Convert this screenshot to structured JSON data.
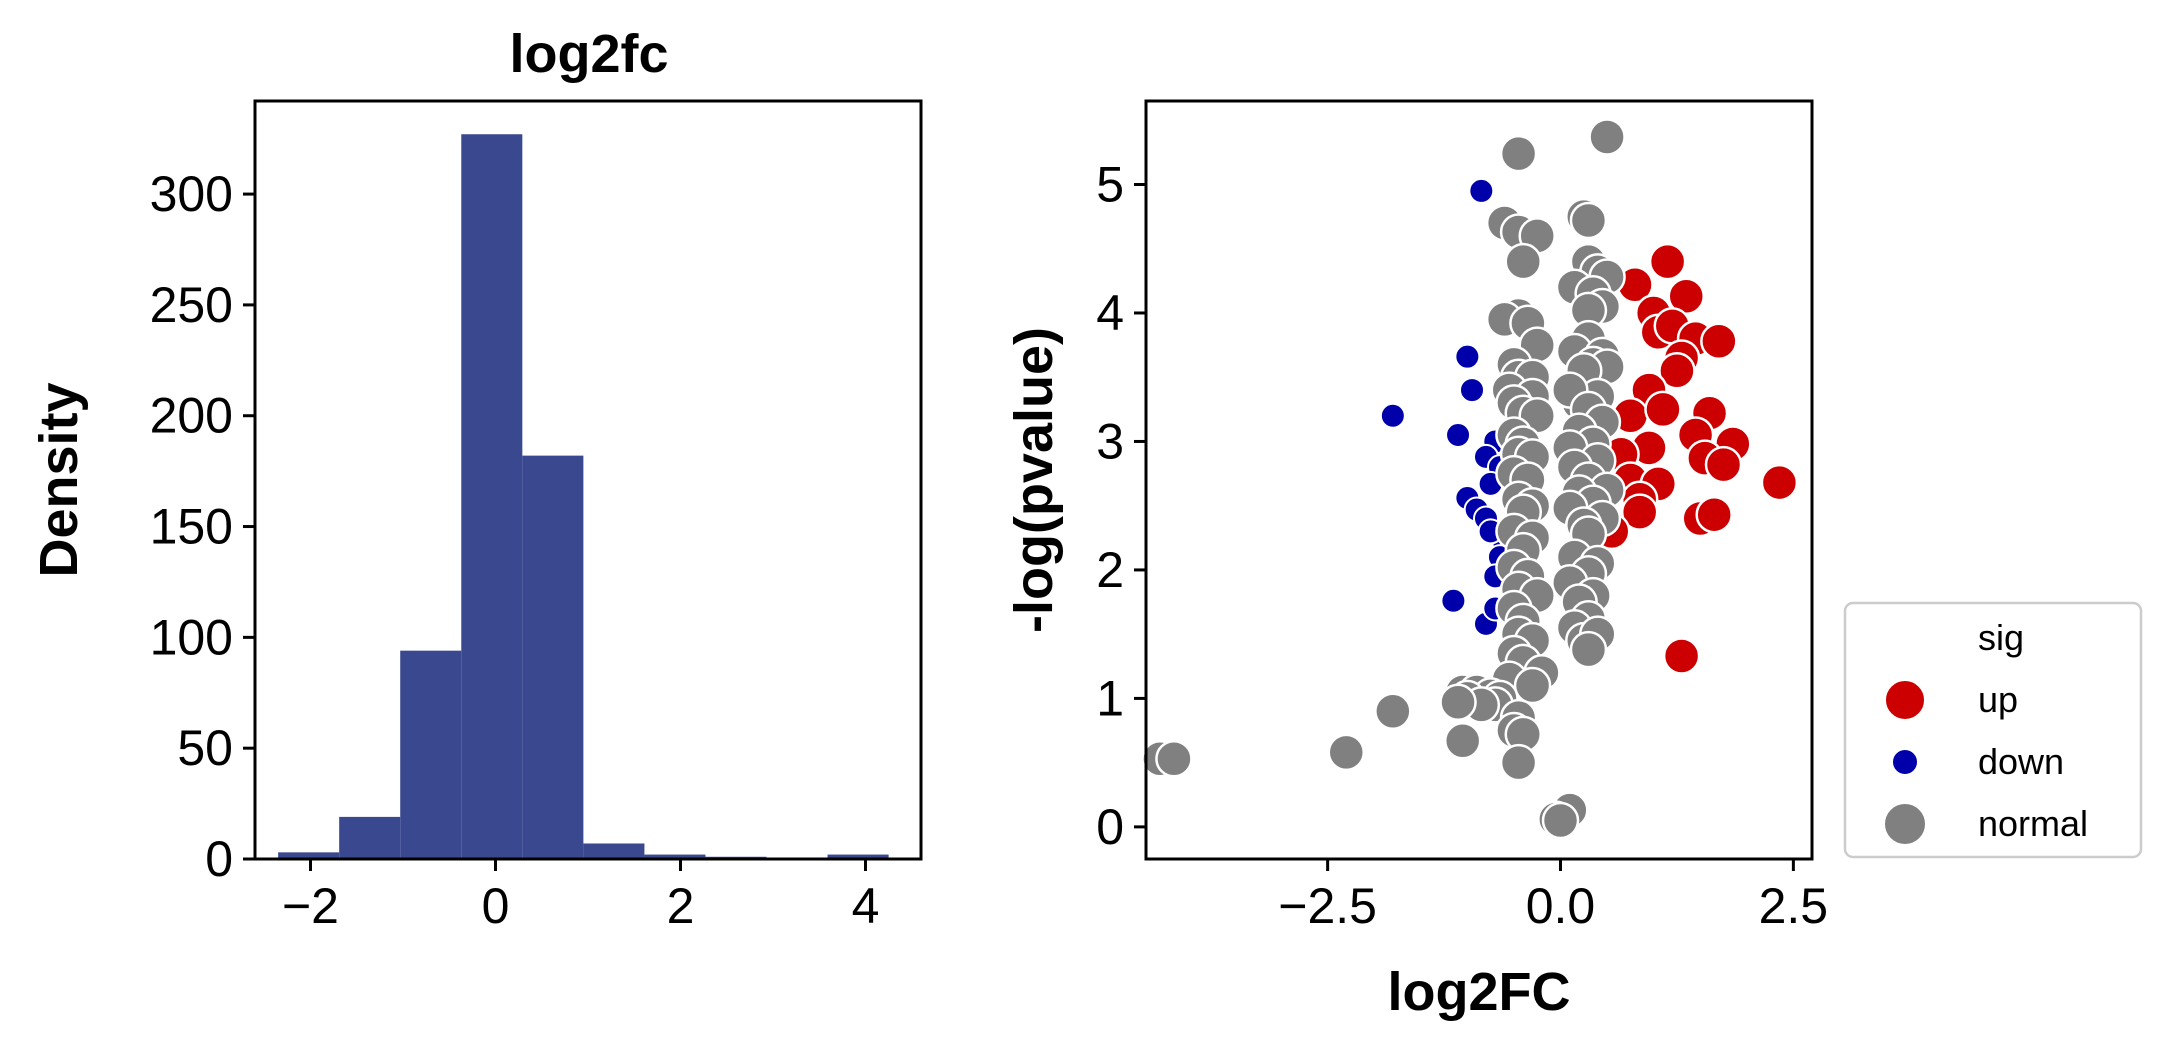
{
  "chart_data": [
    {
      "type": "bar",
      "title": "log2fc",
      "xlabel": "",
      "ylabel": "Density",
      "xlim": [
        -2.6,
        4.6
      ],
      "ylim": [
        0,
        342
      ],
      "xticks": [
        -2,
        0,
        2,
        4
      ],
      "yticks": [
        0,
        50,
        100,
        150,
        200,
        250,
        300
      ],
      "bin_edges": [
        -2.35,
        -1.69,
        -1.03,
        -0.37,
        0.29,
        0.95,
        1.61,
        2.27,
        2.93,
        3.59,
        4.25
      ],
      "values": [
        3,
        19,
        94,
        327,
        182,
        7,
        2,
        1,
        0,
        2
      ],
      "color": "#3a4890",
      "grid": false
    },
    {
      "type": "scatter",
      "title": "",
      "xlabel": "log2FC",
      "ylabel": "-log(pvalue)",
      "xlim": [
        -4.45,
        2.7
      ],
      "ylim": [
        -0.25,
        5.65
      ],
      "xticks": [
        -2.5,
        0.0,
        2.5
      ],
      "xtick_labels": [
        "−2.5",
        "0.0",
        "2.5"
      ],
      "yticks": [
        0,
        1,
        2,
        3,
        4,
        5
      ],
      "grid": false,
      "legend": {
        "title": "sig",
        "placement": "outside-lower-right",
        "entries": [
          {
            "label": "up",
            "color": "#cc0000"
          },
          {
            "label": "down",
            "color": "#0000aa"
          },
          {
            "label": "normal",
            "color": "#808080"
          }
        ]
      },
      "series": [
        {
          "name": "down",
          "color": "#0000aa",
          "size": "small",
          "points": [
            [
              -0.85,
              4.95
            ],
            [
              -1.0,
              3.66
            ],
            [
              -0.95,
              3.4
            ],
            [
              -1.8,
              3.2
            ],
            [
              -1.1,
              3.05
            ],
            [
              -0.7,
              3.0
            ],
            [
              -0.8,
              2.88
            ],
            [
              -0.65,
              2.8
            ],
            [
              -0.75,
              2.67
            ],
            [
              -1.0,
              2.56
            ],
            [
              -0.9,
              2.47
            ],
            [
              -0.8,
              2.4
            ],
            [
              -0.6,
              2.2
            ],
            [
              -0.65,
              2.1
            ],
            [
              -0.7,
              1.95
            ],
            [
              -1.15,
              1.76
            ],
            [
              -0.8,
              1.58
            ],
            [
              -0.7,
              1.7
            ],
            [
              -0.75,
              2.3
            ]
          ]
        },
        {
          "name": "up",
          "color": "#cc0000",
          "size": "large",
          "points": [
            [
              1.15,
              4.4
            ],
            [
              0.8,
              4.22
            ],
            [
              1.35,
              4.13
            ],
            [
              1.0,
              4.0
            ],
            [
              1.05,
              3.85
            ],
            [
              1.2,
              3.9
            ],
            [
              1.45,
              3.8
            ],
            [
              1.7,
              3.78
            ],
            [
              1.3,
              3.65
            ],
            [
              1.25,
              3.55
            ],
            [
              0.95,
              3.4
            ],
            [
              0.75,
              3.2
            ],
            [
              1.1,
              3.25
            ],
            [
              1.6,
              3.22
            ],
            [
              1.45,
              3.05
            ],
            [
              1.85,
              2.98
            ],
            [
              1.55,
              2.87
            ],
            [
              1.75,
              2.82
            ],
            [
              0.95,
              2.95
            ],
            [
              0.65,
              2.9
            ],
            [
              0.75,
              2.7
            ],
            [
              1.05,
              2.67
            ],
            [
              2.35,
              2.68
            ],
            [
              0.85,
              2.55
            ],
            [
              0.85,
              2.45
            ],
            [
              0.55,
              2.3
            ],
            [
              1.5,
              2.4
            ],
            [
              1.65,
              2.43
            ],
            [
              1.3,
              1.33
            ]
          ]
        },
        {
          "name": "normal",
          "color": "#808080",
          "size": "large",
          "points": [
            [
              0.5,
              5.37
            ],
            [
              -0.45,
              5.24
            ],
            [
              0.25,
              4.75
            ],
            [
              0.3,
              4.72
            ],
            [
              -0.6,
              4.7
            ],
            [
              -0.45,
              4.63
            ],
            [
              -0.25,
              4.6
            ],
            [
              -0.4,
              4.4
            ],
            [
              0.3,
              4.4
            ],
            [
              0.4,
              4.32
            ],
            [
              0.5,
              4.28
            ],
            [
              0.15,
              4.2
            ],
            [
              0.35,
              4.15
            ],
            [
              0.45,
              4.05
            ],
            [
              0.3,
              4.02
            ],
            [
              -0.45,
              3.98
            ],
            [
              -0.6,
              3.95
            ],
            [
              -0.35,
              3.92
            ],
            [
              -0.25,
              3.75
            ],
            [
              0.3,
              3.8
            ],
            [
              0.15,
              3.7
            ],
            [
              0.45,
              3.67
            ],
            [
              -0.5,
              3.6
            ],
            [
              -0.45,
              3.5
            ],
            [
              -0.3,
              3.5
            ],
            [
              0.35,
              3.6
            ],
            [
              0.5,
              3.58
            ],
            [
              0.25,
              3.55
            ],
            [
              -0.55,
              3.4
            ],
            [
              -0.3,
              3.35
            ],
            [
              0.2,
              3.3
            ],
            [
              0.4,
              3.35
            ],
            [
              0.1,
              3.4
            ],
            [
              -0.5,
              3.3
            ],
            [
              -0.4,
              3.22
            ],
            [
              -0.25,
              3.2
            ],
            [
              0.3,
              3.25
            ],
            [
              0.45,
              3.15
            ],
            [
              0.2,
              3.08
            ],
            [
              -0.5,
              3.05
            ],
            [
              -0.4,
              2.98
            ],
            [
              0.35,
              2.98
            ],
            [
              0.1,
              2.95
            ],
            [
              -0.45,
              2.9
            ],
            [
              -0.3,
              2.88
            ],
            [
              0.4,
              2.85
            ],
            [
              0.15,
              2.8
            ],
            [
              -0.5,
              2.75
            ],
            [
              -0.35,
              2.7
            ],
            [
              0.3,
              2.7
            ],
            [
              0.5,
              2.62
            ],
            [
              0.2,
              2.6
            ],
            [
              -0.45,
              2.55
            ],
            [
              -0.3,
              2.5
            ],
            [
              0.35,
              2.52
            ],
            [
              0.1,
              2.48
            ],
            [
              -0.4,
              2.45
            ],
            [
              0.45,
              2.4
            ],
            [
              0.25,
              2.35
            ],
            [
              -0.5,
              2.3
            ],
            [
              -0.3,
              2.25
            ],
            [
              0.3,
              2.28
            ],
            [
              -0.4,
              2.15
            ],
            [
              0.15,
              2.1
            ],
            [
              0.4,
              2.05
            ],
            [
              -0.5,
              2.02
            ],
            [
              -0.35,
              1.95
            ],
            [
              0.3,
              1.97
            ],
            [
              0.1,
              1.9
            ],
            [
              -0.45,
              1.85
            ],
            [
              -0.25,
              1.8
            ],
            [
              0.35,
              1.8
            ],
            [
              0.2,
              1.75
            ],
            [
              -0.5,
              1.7
            ],
            [
              -0.4,
              1.6
            ],
            [
              0.3,
              1.62
            ],
            [
              0.15,
              1.55
            ],
            [
              -0.45,
              1.5
            ],
            [
              -0.3,
              1.45
            ],
            [
              0.25,
              1.45
            ],
            [
              0.4,
              1.5
            ],
            [
              -0.5,
              1.35
            ],
            [
              -0.4,
              1.28
            ],
            [
              0.3,
              1.38
            ],
            [
              -0.2,
              1.2
            ],
            [
              -0.55,
              1.15
            ],
            [
              -0.3,
              1.1
            ],
            [
              -1.05,
              1.05
            ],
            [
              -0.9,
              1.05
            ],
            [
              -0.75,
              1.02
            ],
            [
              -1.0,
              1.0
            ],
            [
              -0.65,
              1.0
            ],
            [
              -0.7,
              0.95
            ],
            [
              -0.85,
              0.95
            ],
            [
              -1.1,
              0.97
            ],
            [
              -0.45,
              0.85
            ],
            [
              -0.5,
              0.75
            ],
            [
              -0.4,
              0.72
            ],
            [
              -1.8,
              0.9
            ],
            [
              -1.05,
              0.67
            ],
            [
              -2.3,
              0.58
            ],
            [
              -4.3,
              0.53
            ],
            [
              -4.15,
              0.53
            ],
            [
              -0.45,
              0.5
            ],
            [
              0.1,
              0.13
            ],
            [
              -0.05,
              0.06
            ],
            [
              0.0,
              0.05
            ]
          ]
        }
      ]
    }
  ]
}
